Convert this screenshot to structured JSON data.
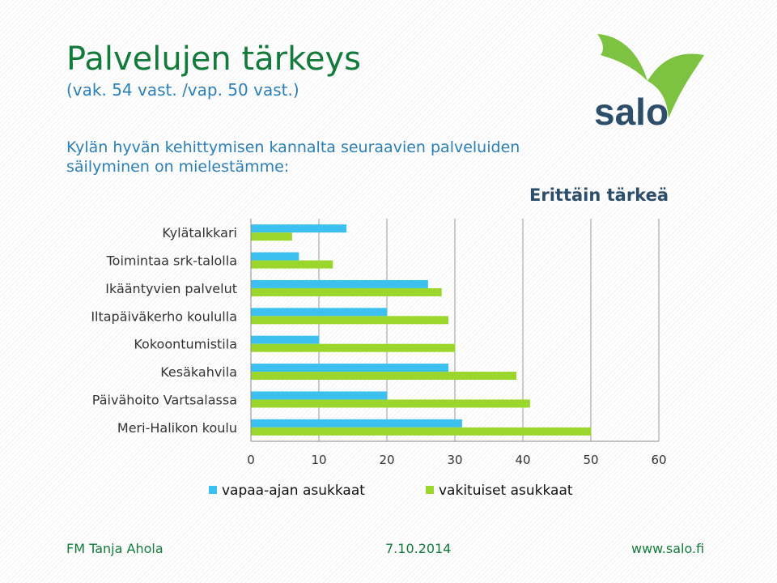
{
  "title": "Palvelujen tärkeys",
  "subtitle": "(vak. 54 vast. /vap. 50 vast.)",
  "question": "Kylän hyvän kehittymisen kannalta seuraavien palveluiden säilyminen on mielestämme:",
  "logo_text": "salo",
  "colors": {
    "title": "#127a3a",
    "text_blue": "#2a7fb8",
    "series_vapaa": "#3cc0ef",
    "series_vakituiset": "#9bd62c",
    "logo_green": "#7ec242",
    "logo_navy": "#2c4e6b"
  },
  "chart_data": {
    "type": "bar",
    "orientation": "horizontal",
    "title": "Erittäin tärkeä",
    "categories": [
      "Kylätalkkari",
      "Toimintaa srk-talolla",
      "Ikääntyvien palvelut",
      "Iltapäiväkerho koululla",
      "Kokoontumistila",
      "Kesäkahvila",
      "Päivähoito Vartsalassa",
      "Meri-Halikon koulu"
    ],
    "series": [
      {
        "name": "vapaa-ajan asukkaat",
        "color": "#3cc0ef",
        "values": [
          14,
          7,
          26,
          20,
          10,
          29,
          20,
          31
        ]
      },
      {
        "name": "vakituiset asukkaat",
        "color": "#9bd62c",
        "values": [
          6,
          12,
          28,
          29,
          30,
          39,
          41,
          50
        ]
      }
    ],
    "xlim": [
      0,
      60
    ],
    "xticks": [
      "0",
      "10",
      "20",
      "30",
      "40",
      "50",
      "60"
    ],
    "grid": "vertical",
    "legend": "bottom"
  },
  "footer": {
    "author": "FM Tanja Ahola",
    "date": "7.10.2014",
    "website": "www.salo.fi"
  }
}
